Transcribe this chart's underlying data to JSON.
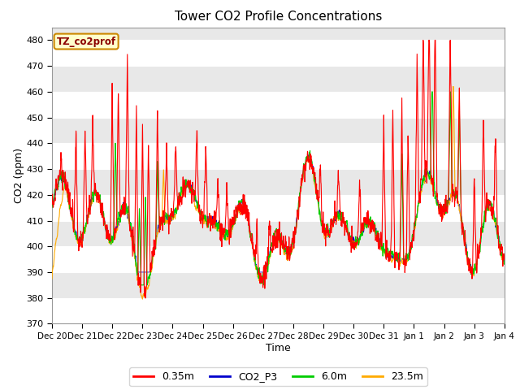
{
  "title": "Tower CO2 Profile Concentrations",
  "xlabel": "Time",
  "ylabel": "CO2 (ppm)",
  "ylim": [
    370,
    485
  ],
  "xlim": [
    0,
    15
  ],
  "annotation_text": "TZ_co2prof",
  "annotation_bg": "#ffffcc",
  "annotation_border": "#cc8800",
  "fig_bg": "#ffffff",
  "plot_bg": "#e8e8e8",
  "band_color": "#f5f5f5",
  "colors": {
    "red": "#ff0000",
    "blue": "#0000cc",
    "green": "#00cc00",
    "orange": "#ffaa00"
  },
  "legend_labels": [
    "0.35m",
    "CO2_P3",
    "6.0m",
    "23.5m"
  ],
  "xtick_labels": [
    "Dec 20",
    "Dec 21",
    "Dec 22",
    "Dec 23",
    "Dec 24",
    "Dec 25",
    "Dec 26",
    "Dec 27",
    "Dec 28",
    "Dec 29",
    "Dec 30",
    "Dec 31",
    "Jan 1",
    "Jan 2",
    "Jan 3",
    "Jan 4"
  ],
  "xtick_positions": [
    0,
    1,
    2,
    3,
    4,
    5,
    6,
    7,
    8,
    9,
    10,
    11,
    12,
    13,
    14,
    15
  ],
  "yticks": [
    370,
    380,
    390,
    400,
    410,
    420,
    430,
    440,
    450,
    460,
    470,
    480
  ]
}
